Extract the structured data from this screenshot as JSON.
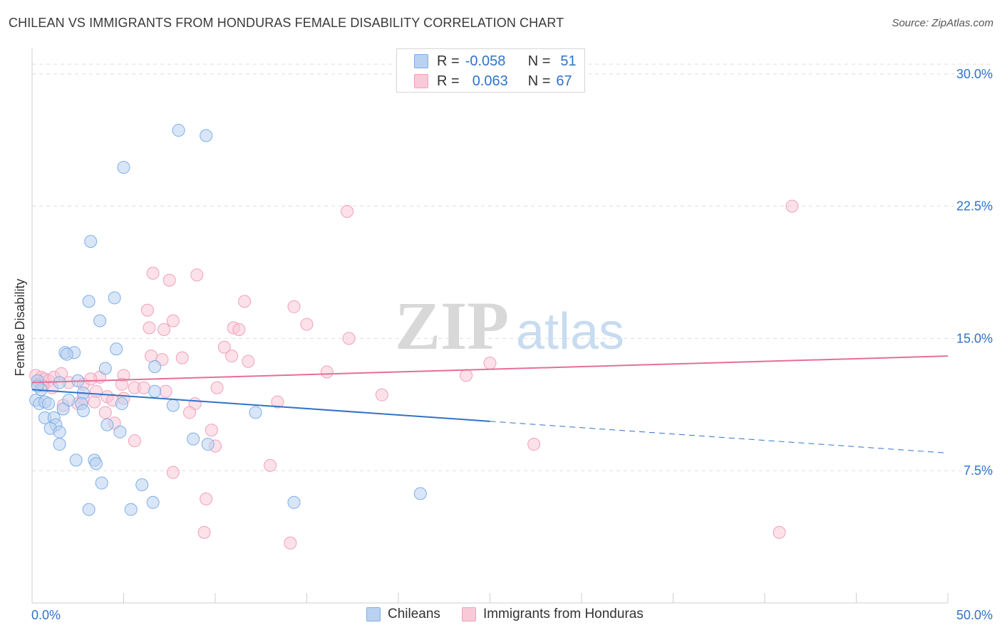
{
  "header": {
    "title": "CHILEAN VS IMMIGRANTS FROM HONDURAS FEMALE DISABILITY CORRELATION CHART",
    "source": "Source: ZipAtlas.com"
  },
  "legend": {
    "rows": [
      {
        "r_label": "R =",
        "r_value": "-0.058",
        "n_label": "N =",
        "n_value": "51",
        "color": "#7eaee6"
      },
      {
        "r_label": "R =",
        "r_value": "0.063",
        "n_label": "N =",
        "n_value": "67",
        "color": "#f0a0bb"
      }
    ]
  },
  "bottom_legend": {
    "items": [
      {
        "label": "Chileans",
        "color": "#7eaee6"
      },
      {
        "label": "Immigrants from Honduras",
        "color": "#f0a0bb"
      }
    ]
  },
  "watermark": {
    "zip": "ZIP",
    "atlas": "atlas"
  },
  "colors": {
    "blue_fill": "#b9d2f1",
    "blue_stroke": "#7eaee6",
    "blue_line": "#2f73c8",
    "pink_fill": "#f9c9d7",
    "pink_stroke": "#f0a0bb",
    "pink_line": "#e56f96",
    "tick_label": "#2f73c8",
    "grid": "#dddddd"
  },
  "chart_data": {
    "type": "scatter",
    "title": "CHILEAN VS IMMIGRANTS FROM HONDURAS FEMALE DISABILITY CORRELATION CHART",
    "xlabel": "",
    "ylabel": "Female Disability",
    "xlim": [
      0,
      50
    ],
    "ylim": [
      0,
      31
    ],
    "x_tick_labels": [
      {
        "value": 0,
        "label": "0.0%"
      },
      {
        "value": 50,
        "label": "50.0%"
      }
    ],
    "y_tick_labels": [
      {
        "value": 7.5,
        "label": "7.5%"
      },
      {
        "value": 15.0,
        "label": "15.0%"
      },
      {
        "value": 22.5,
        "label": "22.5%"
      },
      {
        "value": 30.0,
        "label": "30.0%"
      }
    ],
    "series": [
      {
        "name": "Chileans",
        "r": -0.058,
        "n": 51,
        "trend": {
          "x0": 0,
          "y0": 12.1,
          "x1": 25,
          "y1": 10.3,
          "dash_to_x": 50,
          "dash_to_y": 8.5
        },
        "points": [
          [
            8.0,
            26.8
          ],
          [
            9.5,
            26.5
          ],
          [
            5.0,
            24.7
          ],
          [
            3.2,
            20.5
          ],
          [
            3.1,
            17.1
          ],
          [
            4.5,
            17.3
          ],
          [
            3.7,
            16.0
          ],
          [
            4.6,
            14.4
          ],
          [
            1.8,
            14.2
          ],
          [
            2.3,
            14.2
          ],
          [
            1.9,
            14.1
          ],
          [
            4.0,
            13.3
          ],
          [
            6.7,
            13.4
          ],
          [
            2.5,
            12.6
          ],
          [
            1.5,
            12.5
          ],
          [
            0.3,
            12.6
          ],
          [
            0.5,
            12.1
          ],
          [
            2.8,
            11.9
          ],
          [
            6.7,
            12.0
          ],
          [
            0.2,
            11.5
          ],
          [
            0.4,
            11.3
          ],
          [
            0.7,
            11.4
          ],
          [
            0.9,
            11.3
          ],
          [
            2.0,
            11.5
          ],
          [
            2.7,
            11.3
          ],
          [
            4.9,
            11.3
          ],
          [
            7.7,
            11.2
          ],
          [
            12.2,
            10.8
          ],
          [
            1.7,
            11.0
          ],
          [
            2.8,
            10.9
          ],
          [
            0.7,
            10.5
          ],
          [
            1.2,
            10.5
          ],
          [
            1.3,
            10.1
          ],
          [
            4.1,
            10.1
          ],
          [
            1.0,
            9.9
          ],
          [
            1.5,
            9.7
          ],
          [
            4.8,
            9.7
          ],
          [
            8.8,
            9.3
          ],
          [
            1.5,
            9.0
          ],
          [
            9.6,
            9.0
          ],
          [
            2.4,
            8.1
          ],
          [
            3.4,
            8.1
          ],
          [
            3.5,
            7.9
          ],
          [
            3.8,
            6.8
          ],
          [
            6.0,
            6.7
          ],
          [
            6.6,
            5.7
          ],
          [
            14.3,
            5.7
          ],
          [
            21.2,
            6.2
          ],
          [
            3.1,
            5.3
          ],
          [
            5.4,
            5.3
          ],
          [
            0.3,
            12.3
          ]
        ]
      },
      {
        "name": "Immigrants from Honduras",
        "r": 0.063,
        "n": 67,
        "trend": {
          "x0": 0,
          "y0": 12.5,
          "x1": 50,
          "y1": 14.0
        },
        "points": [
          [
            17.2,
            22.2
          ],
          [
            41.5,
            22.5
          ],
          [
            6.6,
            18.7
          ],
          [
            7.5,
            18.3
          ],
          [
            9.0,
            18.6
          ],
          [
            11.6,
            17.1
          ],
          [
            14.3,
            16.8
          ],
          [
            6.3,
            16.6
          ],
          [
            7.7,
            16.0
          ],
          [
            15.0,
            15.8
          ],
          [
            6.4,
            15.6
          ],
          [
            7.2,
            15.5
          ],
          [
            11.0,
            15.6
          ],
          [
            11.3,
            15.5
          ],
          [
            17.3,
            15.0
          ],
          [
            10.5,
            14.5
          ],
          [
            6.5,
            14.0
          ],
          [
            7.1,
            13.8
          ],
          [
            8.2,
            13.9
          ],
          [
            10.9,
            14.0
          ],
          [
            11.8,
            13.7
          ],
          [
            25.0,
            13.6
          ],
          [
            0.2,
            12.9
          ],
          [
            0.5,
            12.8
          ],
          [
            0.7,
            12.7
          ],
          [
            0.9,
            12.6
          ],
          [
            1.2,
            12.8
          ],
          [
            1.6,
            13.0
          ],
          [
            3.7,
            12.8
          ],
          [
            5.0,
            12.9
          ],
          [
            16.1,
            13.1
          ],
          [
            23.7,
            12.9
          ],
          [
            0.3,
            12.4
          ],
          [
            1.1,
            12.2
          ],
          [
            2.0,
            12.5
          ],
          [
            2.8,
            12.4
          ],
          [
            3.2,
            12.7
          ],
          [
            4.9,
            12.4
          ],
          [
            5.6,
            12.2
          ],
          [
            6.1,
            12.2
          ],
          [
            10.1,
            12.2
          ],
          [
            1.7,
            11.2
          ],
          [
            2.5,
            11.3
          ],
          [
            2.8,
            11.6
          ],
          [
            3.4,
            11.4
          ],
          [
            4.1,
            11.7
          ],
          [
            5.0,
            11.6
          ],
          [
            8.9,
            11.3
          ],
          [
            13.4,
            11.4
          ],
          [
            19.1,
            11.8
          ],
          [
            4.0,
            10.8
          ],
          [
            8.6,
            10.8
          ],
          [
            4.5,
            10.2
          ],
          [
            5.6,
            9.2
          ],
          [
            9.8,
            9.8
          ],
          [
            10.0,
            8.9
          ],
          [
            27.4,
            9.0
          ],
          [
            7.7,
            7.4
          ],
          [
            13.0,
            7.8
          ],
          [
            9.5,
            5.9
          ],
          [
            9.4,
            4.0
          ],
          [
            14.1,
            3.4
          ],
          [
            40.8,
            4.0
          ],
          [
            3.5,
            12.0
          ],
          [
            4.4,
            11.5
          ],
          [
            7.3,
            12.0
          ],
          [
            0.6,
            12.3
          ]
        ]
      }
    ]
  }
}
